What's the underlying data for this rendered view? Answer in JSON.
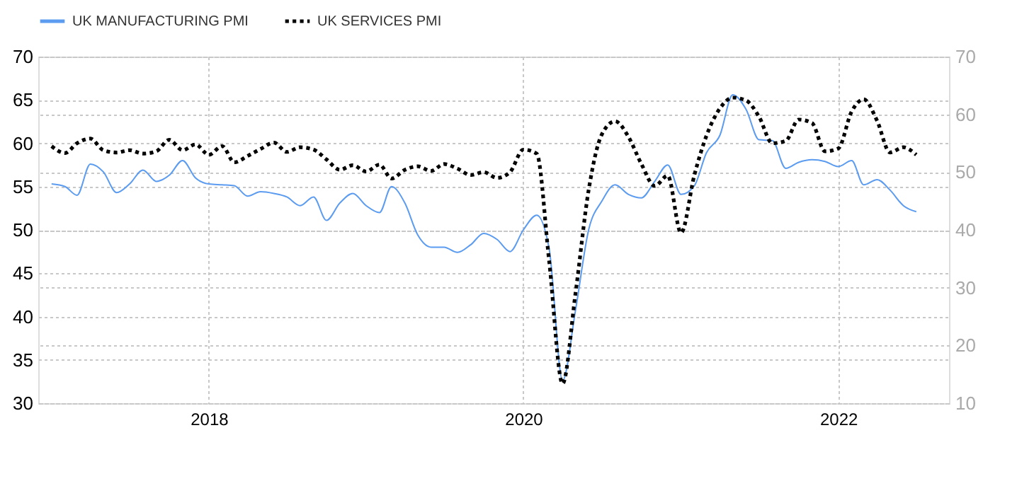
{
  "chart_data": {
    "type": "line",
    "x": [
      "2017-01",
      "2017-02",
      "2017-03",
      "2017-04",
      "2017-05",
      "2017-06",
      "2017-07",
      "2017-08",
      "2017-09",
      "2017-10",
      "2017-11",
      "2017-12",
      "2018-01",
      "2018-02",
      "2018-03",
      "2018-04",
      "2018-05",
      "2018-06",
      "2018-07",
      "2018-08",
      "2018-09",
      "2018-10",
      "2018-11",
      "2018-12",
      "2019-01",
      "2019-02",
      "2019-03",
      "2019-04",
      "2019-05",
      "2019-06",
      "2019-07",
      "2019-08",
      "2019-09",
      "2019-10",
      "2019-11",
      "2019-12",
      "2020-01",
      "2020-02",
      "2020-03",
      "2020-04",
      "2020-05",
      "2020-06",
      "2020-07",
      "2020-08",
      "2020-09",
      "2020-10",
      "2020-11",
      "2020-12",
      "2021-01",
      "2021-02",
      "2021-03",
      "2021-04",
      "2021-05",
      "2021-06",
      "2021-07",
      "2021-08",
      "2021-09",
      "2021-10",
      "2021-11",
      "2021-12",
      "2022-01",
      "2022-02",
      "2022-03",
      "2022-04",
      "2022-05",
      "2022-06",
      "2022-07"
    ],
    "series": [
      {
        "name": "UK MANUFACTURING PMI",
        "color": "#5b9bf0",
        "line_style": "solid",
        "values": [
          55.3,
          55.0,
          54.0,
          57.6,
          56.7,
          54.3,
          55.3,
          56.9,
          55.6,
          56.3,
          58.0,
          56.0,
          55.3,
          55.2,
          55.1,
          53.9,
          54.4,
          54.2,
          53.8,
          52.8,
          53.8,
          51.1,
          53.1,
          54.2,
          52.8,
          52.0,
          55.0,
          53.1,
          49.4,
          48.0,
          48.0,
          47.4,
          48.3,
          49.6,
          48.9,
          47.5,
          50.0,
          51.7,
          47.8,
          32.6,
          40.7,
          50.1,
          53.3,
          55.2,
          54.1,
          53.7,
          55.6,
          57.5,
          54.1,
          55.1,
          58.9,
          60.9,
          65.6,
          63.9,
          60.4,
          60.3,
          57.1,
          57.8,
          58.1,
          57.9,
          57.3,
          58.0,
          55.2,
          55.8,
          54.6,
          52.8,
          52.1
        ]
      },
      {
        "name": "UK SERVICES PMI",
        "color": "#000000",
        "line_style": "dotted",
        "axis": "y2",
        "values": [
          54.5,
          53.3,
          55.0,
          55.8,
          53.8,
          53.4,
          53.8,
          53.2,
          53.6,
          55.6,
          53.8,
          54.8,
          53.0,
          54.5,
          51.7,
          52.8,
          54.0,
          55.1,
          53.5,
          54.3,
          53.9,
          52.2,
          50.4,
          51.2,
          50.1,
          51.3,
          48.9,
          50.4,
          51.0,
          50.2,
          51.4,
          50.6,
          49.5,
          50.0,
          49.0,
          50.0,
          53.9,
          53.2,
          34.5,
          13.4,
          29.0,
          47.1,
          56.5,
          58.8,
          56.1,
          51.4,
          47.6,
          49.4,
          39.5,
          49.5,
          56.3,
          61.0,
          62.9,
          62.4,
          59.6,
          55.0,
          55.4,
          59.1,
          58.5,
          53.6,
          54.1,
          60.5,
          62.6,
          58.9,
          53.4,
          54.3,
          53.0
        ]
      }
    ],
    "xlim": [
      "2016-12-01",
      "2022-09-15"
    ],
    "xticks": [
      "2018",
      "2020",
      "2022"
    ],
    "ylim": [
      30,
      70
    ],
    "yticks": [
      30,
      35,
      40,
      45,
      50,
      55,
      60,
      65,
      70
    ],
    "y2lim": [
      10,
      70
    ],
    "y2ticks": [
      10,
      20,
      30,
      40,
      50,
      60,
      70
    ],
    "grid": true,
    "legend": "top left"
  }
}
